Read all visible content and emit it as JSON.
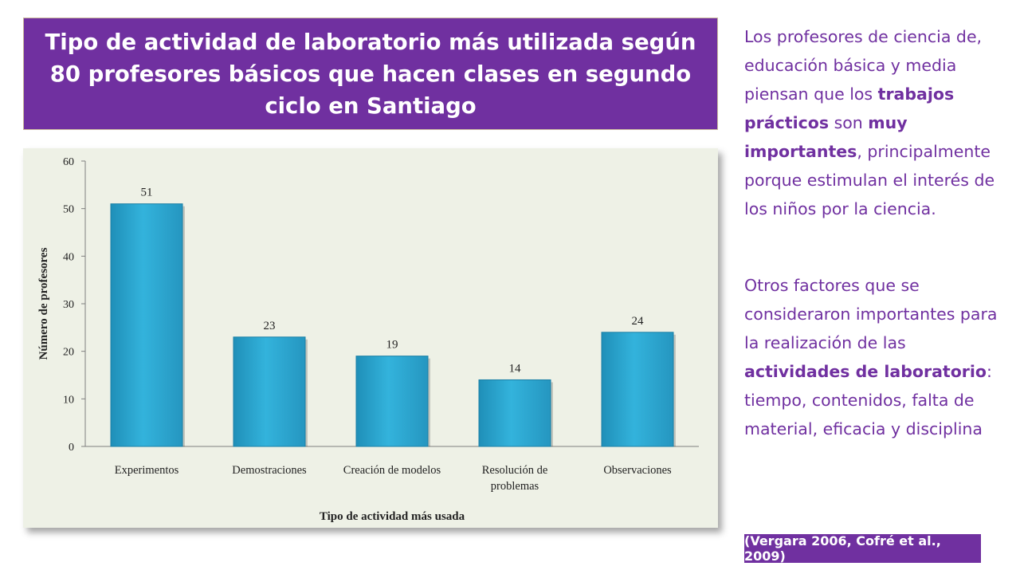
{
  "title": "Tipo de actividad de laboratorio más utilizada según 80 profesores  básicos que hacen clases en segundo ciclo en Santiago",
  "side_text": {
    "p1": {
      "a": "Los profesores de ciencia de, educación básica y media piensan que los ",
      "b": "trabajos prácticos",
      "c": " son ",
      "d": "muy importantes",
      "e": ", principalmente porque estimulan el interés de los niños por la ciencia."
    },
    "p2": {
      "a": "Otros factores que se consideraron importantes para la realización de las ",
      "b": "actividades de laboratorio",
      "c": ": tiempo, contenidos, falta de material, eficacia y disciplina"
    }
  },
  "citation": "(Vergara 2006, Cofré et al., 2009)",
  "colors": {
    "accent": "#7030a0",
    "bar": "#33b3dc",
    "panel": "#eef1e6"
  },
  "chart_data": {
    "type": "bar",
    "categories": [
      "Experimentos",
      "Demostraciones",
      "Creación de modelos",
      "Resolución de problemas",
      "Observaciones"
    ],
    "category_lines": [
      [
        "Experimentos"
      ],
      [
        "Demostraciones"
      ],
      [
        "Creación de modelos"
      ],
      [
        "Resolución de",
        "problemas"
      ],
      [
        "Observaciones"
      ]
    ],
    "values": [
      51,
      23,
      19,
      14,
      24
    ],
    "xlabel": "Tipo de actividad más usada",
    "ylabel": "Número de profesores",
    "ylim": [
      0,
      60
    ],
    "yticks": [
      0,
      10,
      20,
      30,
      40,
      50,
      60
    ],
    "grid": false,
    "data_labels": true
  }
}
